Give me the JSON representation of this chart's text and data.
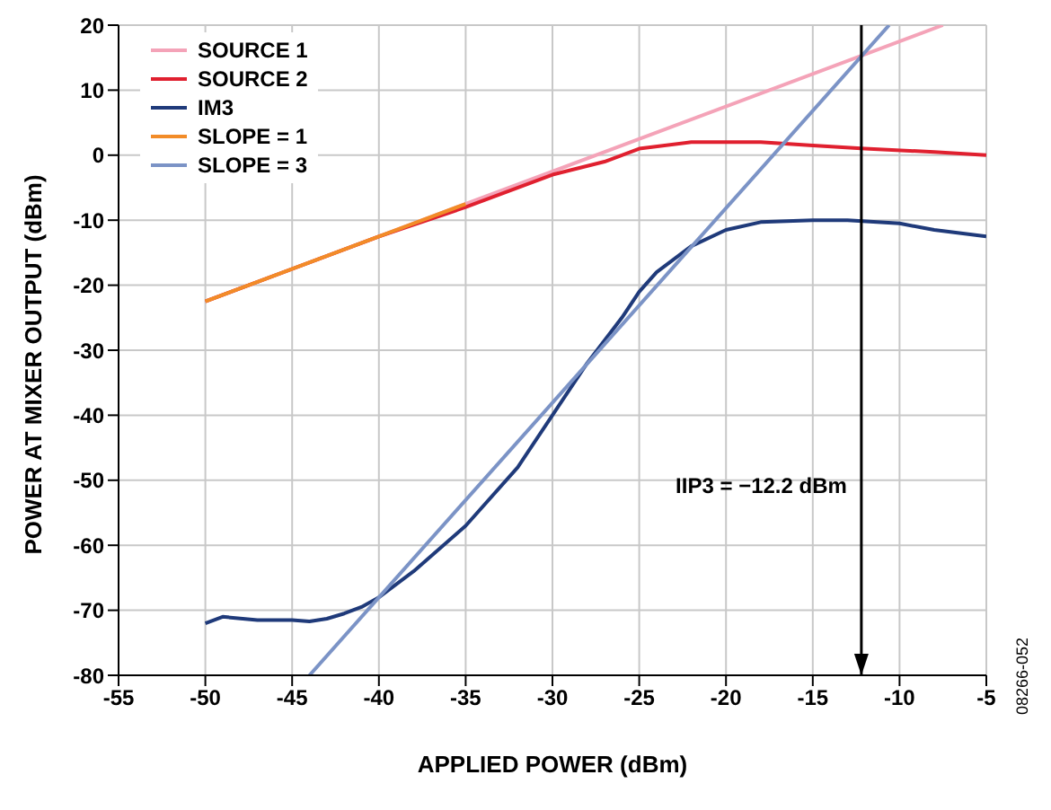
{
  "chart_data": {
    "type": "line",
    "xlabel": "APPLIED POWER (dBm)",
    "ylabel": "POWER AT MIXER OUTPUT (dBm)",
    "xlim": [
      -55,
      -5
    ],
    "xticks": [
      -55,
      -50,
      -45,
      -40,
      -35,
      -30,
      -25,
      -20,
      -15,
      -10,
      -5
    ],
    "ylim": [
      -80,
      20
    ],
    "yticks": [
      -80,
      -70,
      -60,
      -50,
      -40,
      -30,
      -20,
      -10,
      0,
      10,
      20
    ],
    "grid": true,
    "legend": "top left",
    "marker": "none",
    "line_style": "solid",
    "series": [
      {
        "name": "SOURCE 1",
        "color": "#f4a3b8",
        "x": [
          -50,
          -7.5
        ],
        "values": [
          -22.5,
          20
        ]
      },
      {
        "name": "SOURCE 2",
        "color": "#e0202f",
        "x": [
          -50,
          -45,
          -40,
          -35,
          -30,
          -27,
          -25,
          -22,
          -18,
          -15,
          -12,
          -8,
          -5
        ],
        "values": [
          -22.5,
          -17.5,
          -12.5,
          -8,
          -3,
          -1,
          1,
          2,
          2,
          1.5,
          1,
          0.5,
          0
        ]
      },
      {
        "name": "IM3",
        "color": "#1f3a7a",
        "x": [
          -50,
          -49,
          -47,
          -45,
          -44,
          -43,
          -42,
          -41,
          -40,
          -38,
          -35,
          -32,
          -30,
          -28,
          -26,
          -25,
          -24,
          -22,
          -20,
          -18,
          -15,
          -13,
          -10,
          -8,
          -5
        ],
        "values": [
          -72,
          -71,
          -71.5,
          -71.5,
          -71.7,
          -71.3,
          -70.5,
          -69.5,
          -68,
          -64,
          -57,
          -48,
          -40,
          -32,
          -25,
          -21,
          -18,
          -14,
          -11.5,
          -10.3,
          -10,
          -10,
          -10.5,
          -11.5,
          -12.5
        ]
      },
      {
        "name": "SLOPE = 1",
        "color": "#f28c28",
        "x": [
          -50,
          -35
        ],
        "values": [
          -22.5,
          -7.5
        ]
      },
      {
        "name": "SLOPE = 3",
        "color": "#7b93c6",
        "x": [
          -44,
          -10.6
        ],
        "values": [
          -80,
          20
        ]
      }
    ],
    "ref_lines": [
      {
        "axis": "x",
        "value": -12.2,
        "label": "IIP3 = −12.2 dBm",
        "color": "#000000"
      }
    ],
    "annotations": [
      "08266-052"
    ]
  }
}
